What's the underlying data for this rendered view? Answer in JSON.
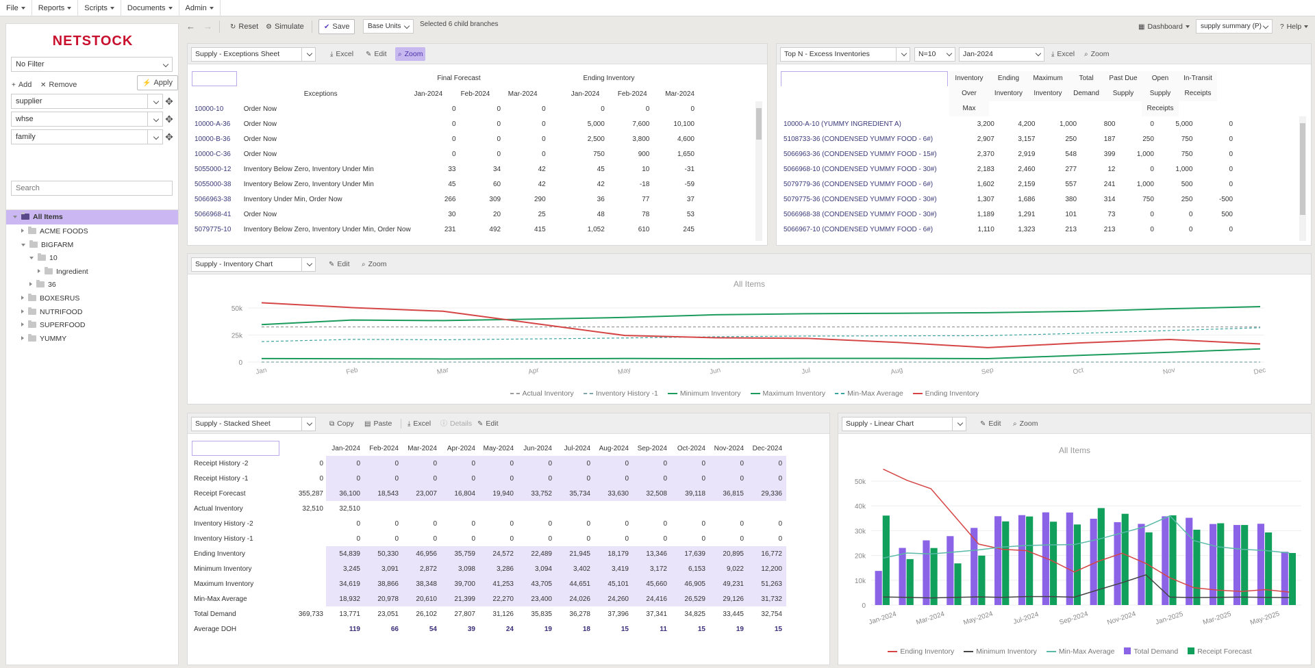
{
  "menubar": {
    "items": [
      "File",
      "Reports",
      "Scripts",
      "Documents",
      "Admin"
    ]
  },
  "sidebar": {
    "logo": "NETSTOCK",
    "filter": "No Filter",
    "add_label": "Add",
    "remove_label": "Remove",
    "apply_label": "Apply",
    "dims": [
      "supplier",
      "whse",
      "family"
    ],
    "search_placeholder": "Search",
    "tree": {
      "root": "All Items",
      "nodes": [
        {
          "label": "ACME FOODS",
          "level": 1,
          "expanded": false
        },
        {
          "label": "BIGFARM",
          "level": 1,
          "expanded": true
        },
        {
          "label": "10",
          "level": 2,
          "expanded": true
        },
        {
          "label": "Ingredient",
          "level": 3,
          "expanded": false
        },
        {
          "label": "36",
          "level": 2,
          "expanded": false
        },
        {
          "label": "BOXESRUS",
          "level": 1,
          "expanded": false
        },
        {
          "label": "NUTRIFOOD",
          "level": 1,
          "expanded": false
        },
        {
          "label": "SUPERFOOD",
          "level": 1,
          "expanded": false
        },
        {
          "label": "YUMMY",
          "level": 1,
          "expanded": false
        }
      ]
    }
  },
  "toolbar": {
    "reset": "Reset",
    "simulate": "Simulate",
    "save": "Save",
    "units": "Base Units",
    "selected": "Selected 6 child branches",
    "dashboard": "Dashboard",
    "view": "supply summary (P)",
    "help": "Help"
  },
  "exceptions": {
    "title": "Supply - Exceptions Sheet",
    "excel": "Excel",
    "edit": "Edit",
    "zoom": "Zoom",
    "group_headers": [
      "Final Forecast",
      "Ending Inventory"
    ],
    "col_exceptions": "Exceptions",
    "months": [
      "Jan-2024",
      "Feb-2024",
      "Mar-2024",
      "Jan-2024",
      "Feb-2024",
      "Mar-2024"
    ],
    "rows": [
      {
        "code": "10000-10",
        "exc": "Order Now",
        "v": [
          "0",
          "0",
          "0",
          "0",
          "0",
          "0"
        ]
      },
      {
        "code": "10000-A-36",
        "exc": "Order Now",
        "v": [
          "0",
          "0",
          "0",
          "5,000",
          "7,600",
          "10,100"
        ]
      },
      {
        "code": "10000-B-36",
        "exc": "Order Now",
        "v": [
          "0",
          "0",
          "0",
          "2,500",
          "3,800",
          "4,600"
        ]
      },
      {
        "code": "10000-C-36",
        "exc": "Order Now",
        "v": [
          "0",
          "0",
          "0",
          "750",
          "900",
          "1,650"
        ]
      },
      {
        "code": "5055000-12",
        "exc": "Inventory Below Zero, Inventory Under Min",
        "v": [
          "33",
          "34",
          "42",
          "45",
          "10",
          "-31"
        ]
      },
      {
        "code": "5055000-38",
        "exc": "Inventory Below Zero, Inventory Under Min",
        "v": [
          "45",
          "60",
          "42",
          "42",
          "-18",
          "-59"
        ]
      },
      {
        "code": "5066963-38",
        "exc": "Inventory Under Min, Order Now",
        "v": [
          "266",
          "309",
          "290",
          "36",
          "77",
          "37"
        ]
      },
      {
        "code": "5066968-41",
        "exc": "Order Now",
        "v": [
          "30",
          "20",
          "25",
          "48",
          "78",
          "53"
        ]
      },
      {
        "code": "5079775-10",
        "exc": "Inventory Below Zero, Inventory Under Min, Order Now",
        "v": [
          "231",
          "492",
          "415",
          "1,052",
          "610",
          "245"
        ]
      }
    ]
  },
  "topn": {
    "title": "Top N - Excess Inventories",
    "n": "N=10",
    "month": "Jan-2024",
    "excel": "Excel",
    "zoom": "Zoom",
    "headers": [
      [
        "Inventory",
        "Over",
        "Max"
      ],
      [
        "Ending",
        "Inventory"
      ],
      [
        "Maximum",
        "Inventory"
      ],
      [
        "Total",
        "Demand"
      ],
      [
        "Past Due",
        "Supply"
      ],
      [
        "Open",
        "Supply",
        "Receipts"
      ],
      [
        "In-Transit",
        "Receipts"
      ]
    ],
    "rows": [
      {
        "name": "10000-A-10 (YUMMY INGREDIENT A)",
        "v": [
          "3,200",
          "4,200",
          "1,000",
          "800",
          "0",
          "5,000",
          "0"
        ]
      },
      {
        "name": "5108733-36 (CONDENSED YUMMY FOOD - 6#)",
        "v": [
          "2,907",
          "3,157",
          "250",
          "187",
          "250",
          "750",
          "0"
        ]
      },
      {
        "name": "5066963-36 (CONDENSED YUMMY FOOD - 15#)",
        "v": [
          "2,370",
          "2,919",
          "548",
          "399",
          "1,000",
          "750",
          "0"
        ]
      },
      {
        "name": "5066968-10 (CONDENSED YUMMY FOOD - 30#)",
        "v": [
          "2,183",
          "2,460",
          "277",
          "12",
          "0",
          "1,000",
          "0"
        ]
      },
      {
        "name": "5079779-36 (CONDENSED YUMMY FOOD - 6#)",
        "v": [
          "1,602",
          "2,159",
          "557",
          "241",
          "1,000",
          "500",
          "0"
        ]
      },
      {
        "name": "5079775-36 (CONDENSED YUMMY FOOD - 30#)",
        "v": [
          "1,307",
          "1,686",
          "380",
          "314",
          "750",
          "250",
          "-500"
        ]
      },
      {
        "name": "5066968-38 (CONDENSED YUMMY FOOD - 30#)",
        "v": [
          "1,189",
          "1,291",
          "101",
          "73",
          "0",
          "0",
          "500"
        ]
      },
      {
        "name": "5066967-10 (CONDENSED YUMMY FOOD - 6#)",
        "v": [
          "1,110",
          "1,323",
          "213",
          "213",
          "0",
          "0",
          "0"
        ]
      }
    ]
  },
  "invchart": {
    "title": "Supply - Inventory Chart",
    "edit": "Edit",
    "zoom": "Zoom"
  },
  "stacked": {
    "title": "Supply - Stacked Sheet",
    "copy": "Copy",
    "paste": "Paste",
    "excel": "Excel",
    "details": "Details",
    "edit": "Edit",
    "months": [
      "Jan-2024",
      "Feb-2024",
      "Mar-2024",
      "Apr-2024",
      "May-2024",
      "Jun-2024",
      "Jul-2024",
      "Aug-2024",
      "Sep-2024",
      "Oct-2024",
      "Nov-2024",
      "Dec-2024"
    ],
    "rows": [
      {
        "label": "Receipt History -2",
        "total": "0",
        "v": [
          "0",
          "0",
          "0",
          "0",
          "0",
          "0",
          "0",
          "0",
          "0",
          "0",
          "0",
          "0"
        ],
        "hl": true
      },
      {
        "label": "Receipt History -1",
        "total": "0",
        "v": [
          "0",
          "0",
          "0",
          "0",
          "0",
          "0",
          "0",
          "0",
          "0",
          "0",
          "0",
          "0"
        ],
        "hl": true
      },
      {
        "label": "Receipt Forecast",
        "total": "355,287",
        "v": [
          "36,100",
          "18,543",
          "23,007",
          "16,804",
          "19,940",
          "33,752",
          "35,734",
          "33,630",
          "32,508",
          "39,118",
          "36,815",
          "29,336"
        ],
        "hl": true
      },
      {
        "label": "Actual Inventory",
        "total": "32,510",
        "v": [
          "32,510",
          "",
          "",
          "",
          "",
          "",
          "",
          "",
          "",
          "",
          "",
          ""
        ],
        "hl": false
      },
      {
        "label": "Inventory History -2",
        "total": "",
        "v": [
          "0",
          "0",
          "0",
          "0",
          "0",
          "0",
          "0",
          "0",
          "0",
          "0",
          "0",
          "0"
        ],
        "hl": false
      },
      {
        "label": "Inventory History -1",
        "total": "",
        "v": [
          "0",
          "0",
          "0",
          "0",
          "0",
          "0",
          "0",
          "0",
          "0",
          "0",
          "0",
          "0"
        ],
        "hl": false
      },
      {
        "label": "Ending Inventory",
        "total": "",
        "v": [
          "54,839",
          "50,330",
          "46,956",
          "35,759",
          "24,572",
          "22,489",
          "21,945",
          "18,179",
          "13,346",
          "17,639",
          "20,895",
          "16,772"
        ],
        "hl": true
      },
      {
        "label": "Minimum Inventory",
        "total": "",
        "v": [
          "3,245",
          "3,091",
          "2,872",
          "3,098",
          "3,286",
          "3,094",
          "3,402",
          "3,419",
          "3,172",
          "6,153",
          "9,022",
          "12,200"
        ],
        "hl": true
      },
      {
        "label": "Maximum Inventory",
        "total": "",
        "v": [
          "34,619",
          "38,866",
          "38,348",
          "39,700",
          "41,253",
          "43,705",
          "44,651",
          "45,101",
          "45,660",
          "46,905",
          "49,231",
          "51,263"
        ],
        "hl": true
      },
      {
        "label": "Min-Max Average",
        "total": "",
        "v": [
          "18,932",
          "20,978",
          "20,610",
          "21,399",
          "22,270",
          "23,400",
          "24,026",
          "24,260",
          "24,416",
          "26,529",
          "29,126",
          "31,732"
        ],
        "hl": true
      },
      {
        "label": "Total Demand",
        "total": "369,733",
        "v": [
          "13,771",
          "23,051",
          "26,102",
          "27,807",
          "31,126",
          "35,835",
          "36,278",
          "37,396",
          "37,341",
          "34,825",
          "33,445",
          "32,754"
        ],
        "hl": false
      },
      {
        "label": "Average DOH",
        "total": "",
        "v": [
          "119",
          "66",
          "54",
          "39",
          "24",
          "19",
          "18",
          "15",
          "11",
          "15",
          "19",
          "15"
        ],
        "hl": false,
        "bold": true
      }
    ]
  },
  "linear": {
    "title": "Supply - Linear Chart",
    "edit": "Edit",
    "zoom": "Zoom"
  },
  "chart_data": [
    {
      "type": "line",
      "title": "All Items",
      "categories": [
        "Jan",
        "Feb",
        "Mar",
        "Apr",
        "May",
        "Jun",
        "Jul",
        "Aug",
        "Sep",
        "Oct",
        "Nov",
        "Dec"
      ],
      "yticks": [
        "0",
        "25k",
        "50k"
      ],
      "ylim": [
        0,
        62000
      ],
      "series": [
        {
          "name": "Actual Inventory",
          "style": "dashed",
          "color": "#9b9b9b",
          "values": [
            32510,
            32510,
            32510,
            32510,
            32510,
            32510,
            32510,
            32510,
            32510,
            32510,
            32510,
            32510
          ]
        },
        {
          "name": "Inventory History -1",
          "style": "dashed",
          "color": "#7fa6a6",
          "values": [
            0,
            0,
            0,
            0,
            0,
            0,
            0,
            0,
            0,
            0,
            0,
            0
          ]
        },
        {
          "name": "Minimum Inventory",
          "style": "solid",
          "color": "#1a9b5b",
          "values": [
            3245,
            3091,
            2872,
            3098,
            3286,
            3094,
            3402,
            3419,
            3172,
            6153,
            9022,
            12200
          ]
        },
        {
          "name": "Maximum Inventory",
          "style": "solid",
          "color": "#1a9b5b",
          "values": [
            34619,
            38866,
            38348,
            39700,
            41253,
            43705,
            44651,
            45101,
            45660,
            46905,
            49231,
            51263
          ]
        },
        {
          "name": "Min-Max Average",
          "style": "dashed",
          "color": "#3aa5a0",
          "values": [
            18932,
            20978,
            20610,
            21399,
            22270,
            23400,
            24026,
            24260,
            24416,
            26529,
            29126,
            31732
          ]
        },
        {
          "name": "Ending Inventory",
          "style": "solid",
          "color": "#d64545",
          "values": [
            54839,
            50330,
            46956,
            35759,
            24572,
            22489,
            21945,
            18179,
            13346,
            17639,
            20895,
            16772
          ]
        }
      ]
    },
    {
      "type": "bar",
      "title": "All Items",
      "categories": [
        "Jan-2024",
        "Feb-2024",
        "Mar-2024",
        "Apr-2024",
        "May-2024",
        "Jun-2024",
        "Jul-2024",
        "Aug-2024",
        "Sep-2024",
        "Oct-2024",
        "Nov-2024",
        "Dec-2024",
        "Jan-2025",
        "Feb-2025",
        "Mar-2025",
        "Apr-2025",
        "May-2025",
        "Jun-2025"
      ],
      "xticks": [
        "Jan-2024",
        "Mar-2024",
        "May-2024",
        "Jul-2024",
        "Sep-2024",
        "Nov-2024",
        "Jan-2025",
        "Mar-2025",
        "May-2025"
      ],
      "yticks": [
        "0",
        "10k",
        "20k",
        "30k",
        "40k",
        "50k"
      ],
      "ylim": [
        0,
        58000
      ],
      "bars": [
        {
          "name": "Total Demand",
          "color": "#8b63e6",
          "values": [
            13771,
            23051,
            26102,
            27807,
            31126,
            35835,
            36278,
            37396,
            37341,
            34825,
            33445,
            32754,
            35800,
            35200,
            32700,
            32300,
            32800,
            21500
          ]
        },
        {
          "name": "Receipt Forecast",
          "color": "#10a05c",
          "values": [
            36100,
            18543,
            23007,
            16804,
            19940,
            33752,
            35734,
            33630,
            32508,
            39118,
            36815,
            29336,
            36200,
            30400,
            33000,
            32300,
            29300,
            21000
          ]
        }
      ],
      "lines": [
        {
          "name": "Ending Inventory",
          "color": "#d64545",
          "values": [
            54839,
            50330,
            46956,
            35759,
            24572,
            22489,
            21945,
            18179,
            13346,
            17639,
            20895,
            16772,
            11000,
            7000,
            6000,
            5500,
            6200,
            5200
          ]
        },
        {
          "name": "Minimum Inventory",
          "color": "#444444",
          "values": [
            3245,
            3091,
            2872,
            3098,
            3286,
            3094,
            3402,
            3419,
            3172,
            6153,
            9022,
            12200,
            3200,
            3000,
            3100,
            3200,
            3100,
            3000
          ]
        },
        {
          "name": "Min-Max Average",
          "color": "#5ab9a8",
          "values": [
            18932,
            20978,
            20610,
            21399,
            22270,
            23400,
            24026,
            24260,
            24416,
            26529,
            29126,
            31732,
            36000,
            26000,
            23500,
            22500,
            22000,
            21000
          ]
        }
      ]
    }
  ]
}
